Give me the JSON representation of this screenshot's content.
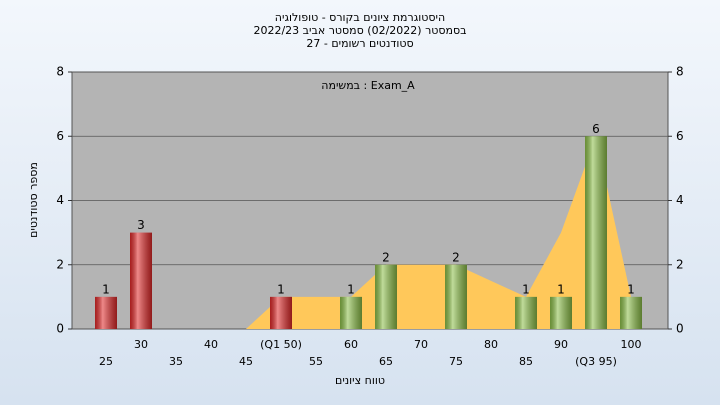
{
  "chart_data": {
    "type": "bar",
    "title": "היסטוגרמת ציונים בקורס - טופולוגיה",
    "subtitle": "בסמסטר  (02/2022)  סמסטר אביב 2022/23",
    "subtitle2": "סטודנטים רשומים - 27",
    "annotation": "במשימה : Exam_A",
    "y_label": "מספר סטודנטים",
    "x_label": "טווח ציונים",
    "categories": [
      "25",
      "30",
      "35",
      "40",
      "45",
      "(Q1 50)",
      "55",
      "60",
      "65",
      "70",
      "75",
      "80",
      "85",
      "90",
      "(Q3 95)",
      "100"
    ],
    "values": [
      1,
      3,
      0,
      0,
      0,
      1,
      0,
      1,
      2,
      0,
      2,
      0,
      1,
      1,
      6,
      1
    ],
    "colors": [
      "#e02828",
      "#e02828",
      "#8cbf48",
      "#8cbf48",
      "#8cbf48",
      "#e02828",
      "#8cbf48",
      "#8cbf48",
      "#8cbf48",
      "#8cbf48",
      "#8cbf48",
      "#8cbf48",
      "#8cbf48",
      "#8cbf48",
      "#8cbf48",
      "#8cbf48"
    ],
    "area": {
      "color": "#ffc85a",
      "values": [
        null,
        null,
        null,
        null,
        0,
        1,
        1,
        1,
        2,
        2,
        2,
        1.5,
        1,
        3,
        6,
        1
      ]
    },
    "ylim": [
      0,
      8
    ],
    "yticks": [
      0,
      2,
      4,
      6,
      8
    ],
    "y2lim": [
      0,
      8
    ],
    "y2ticks": [
      0,
      2,
      4,
      6,
      8
    ],
    "grid": true
  }
}
